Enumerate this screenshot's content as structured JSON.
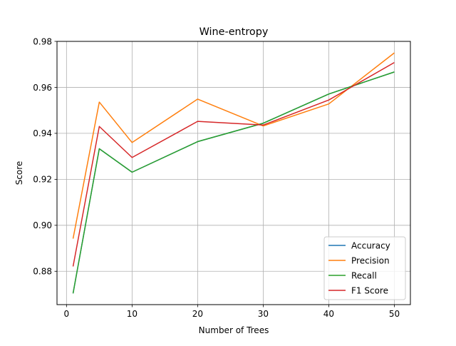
{
  "chart_data": {
    "type": "line",
    "title": "Wine-entropy",
    "xlabel": "Number of Trees",
    "ylabel": "Score",
    "x": [
      1,
      5,
      10,
      20,
      30,
      40,
      50
    ],
    "xlim": [
      -1.45,
      52.45
    ],
    "ylim": [
      0.8655,
      0.98
    ],
    "xticks": [
      0,
      10,
      20,
      30,
      40,
      50
    ],
    "xtick_labels": [
      "0",
      "10",
      "20",
      "30",
      "40",
      "50"
    ],
    "yticks": [
      0.88,
      0.9,
      0.92,
      0.94,
      0.96,
      0.98
    ],
    "ytick_labels": [
      "0.88",
      "0.90",
      "0.92",
      "0.94",
      "0.96",
      "0.98"
    ],
    "grid": true,
    "legend_position": "lower-right",
    "series": [
      {
        "name": "Accuracy",
        "color": "#1f77b4",
        "values": [
          0.8704,
          0.9333,
          0.9231,
          0.9364,
          0.9444,
          0.9571,
          0.9667
        ]
      },
      {
        "name": "Precision",
        "color": "#ff7f0e",
        "values": [
          0.8942,
          0.9536,
          0.936,
          0.9549,
          0.9432,
          0.9528,
          0.975
        ]
      },
      {
        "name": "Recall",
        "color": "#2ca02c",
        "values": [
          0.8704,
          0.9333,
          0.9231,
          0.9364,
          0.9444,
          0.9571,
          0.9667
        ]
      },
      {
        "name": "F1 Score",
        "color": "#d62728",
        "values": [
          0.8821,
          0.943,
          0.9295,
          0.9452,
          0.9436,
          0.9545,
          0.9708
        ]
      }
    ]
  }
}
